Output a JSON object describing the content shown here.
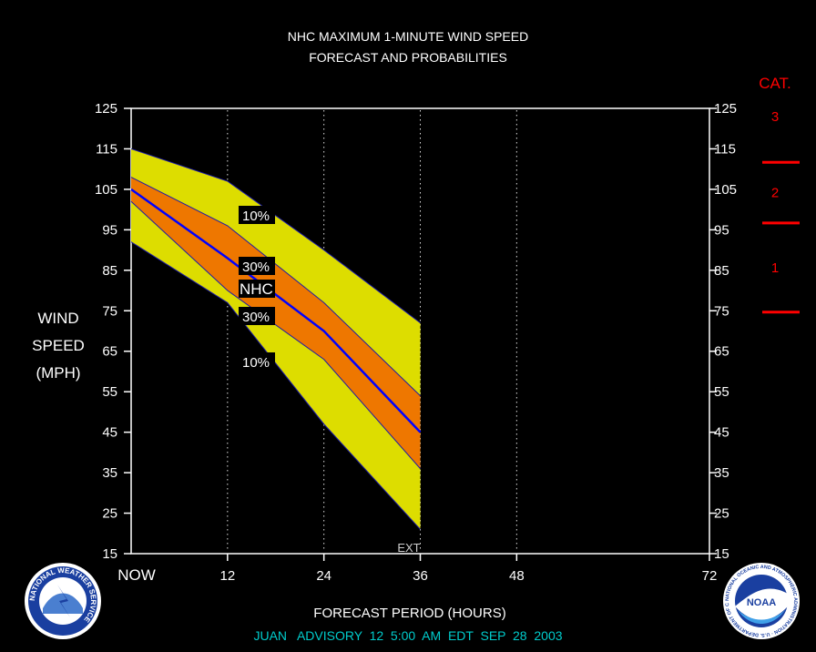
{
  "header": {
    "line1": "NHC MAXIMUM 1-MINUTE WIND SPEED",
    "line2": "FORECAST AND PROBABILITIES"
  },
  "y_axis": {
    "label_lines": [
      "WIND",
      "SPEED",
      "(MPH)"
    ],
    "ticks": [
      "125",
      "115",
      "105",
      "95",
      "85",
      "75",
      "65",
      "55",
      "45",
      "35",
      "25",
      "15"
    ]
  },
  "x_axis": {
    "label": "FORECAST PERIOD (HOURS)",
    "ticks": [
      "NOW",
      "12",
      "24",
      "36",
      "48",
      "72"
    ],
    "ext_label": "EXT"
  },
  "category_scale": {
    "title": "CAT.",
    "labels": [
      "3",
      "2",
      "1"
    ],
    "color": "#ff0000"
  },
  "band_labels": {
    "outer_upper": "10%",
    "inner_upper": "30%",
    "center": "NHC",
    "inner_lower": "30%",
    "outer_lower": "10%"
  },
  "footer": "JUAN   ADVISORY  12  5:00  AM  EDT  SEP  28  2003",
  "logos": {
    "left": "nws-logo",
    "right": "noaa-logo",
    "left_text": "NATIONAL WEATHER SERVICE",
    "right_text": "NATIONAL OCEANIC AND ATMOSPHERIC ADMINISTRATION · U.S. DEPARTMENT OF COMMERCE",
    "right_center": "NOAA"
  },
  "colors": {
    "outer_band": "#dddd00",
    "inner_band": "#ee7700",
    "forecast_line": "#0000ff",
    "footer_text": "#00cccc"
  },
  "chart_data": {
    "type": "area",
    "title": "NHC MAXIMUM 1-MINUTE WIND SPEED FORECAST AND PROBABILITIES",
    "xlabel": "FORECAST PERIOD (HOURS)",
    "ylabel": "WIND SPEED (MPH)",
    "xlim": [
      0,
      72
    ],
    "ylim": [
      15,
      125
    ],
    "x_ticks": [
      0,
      12,
      24,
      36,
      48,
      72
    ],
    "category_thresholds_mph": [
      74,
      96,
      111
    ],
    "x": [
      0,
      12,
      24,
      36
    ],
    "series": [
      {
        "band": "10% upper",
        "values": [
          115,
          107,
          90,
          72
        ]
      },
      {
        "band": "30% upper",
        "values": [
          108,
          96,
          77,
          54
        ]
      },
      {
        "band": "NHC",
        "values": [
          105,
          88,
          70,
          45
        ]
      },
      {
        "band": "30% lower",
        "values": [
          102,
          80,
          63,
          36
        ]
      },
      {
        "band": "10% lower",
        "values": [
          92,
          77,
          47,
          21
        ]
      }
    ]
  }
}
